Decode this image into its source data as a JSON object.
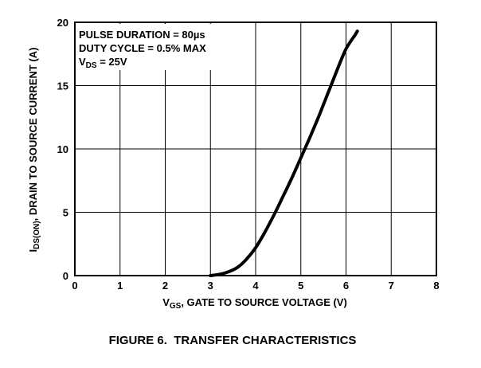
{
  "chart_data": {
    "type": "line",
    "title": "FIGURE 6.  TRANSFER CHARACTERISTICS",
    "xlabel": {
      "main": "V",
      "sub": "GS",
      "rest": ", GATE TO SOURCE VOLTAGE (V)"
    },
    "ylabel": {
      "main": "I",
      "sub": "DS(ON)",
      "rest": ", DRAIN TO SOURCE CURRENT (A)"
    },
    "xlim": [
      0,
      8
    ],
    "ylim": [
      0,
      20
    ],
    "xticks": [
      "0",
      "1",
      "2",
      "3",
      "4",
      "5",
      "6",
      "7",
      "8"
    ],
    "yticks": [
      "0",
      "5",
      "10",
      "15",
      "20"
    ],
    "grid": true,
    "annotations": [
      {
        "main": "PULSE DURATION = 80",
        "mu": "µ",
        "rest": "s"
      },
      {
        "main": "DUTY CYCLE = 0.5% MAX"
      },
      {
        "main": "V",
        "sub": "DS",
        "rest": " = 25V"
      }
    ],
    "series": [
      {
        "x": [
          3.0,
          3.2,
          3.4,
          3.6,
          3.8,
          4.0,
          4.2,
          4.4,
          4.6,
          4.8,
          5.0,
          5.2,
          5.4,
          5.6,
          5.8,
          6.0,
          6.2,
          6.25
        ],
        "y": [
          0.0,
          0.1,
          0.3,
          0.65,
          1.3,
          2.2,
          3.4,
          4.75,
          6.2,
          7.7,
          9.3,
          10.9,
          12.6,
          14.4,
          16.2,
          17.9,
          19.0,
          19.3
        ]
      }
    ]
  }
}
